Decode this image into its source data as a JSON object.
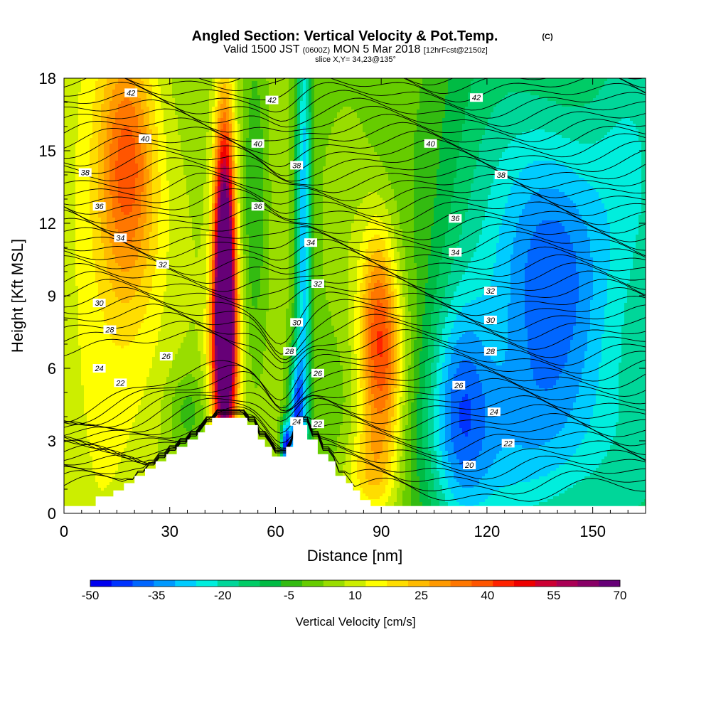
{
  "chart_data": {
    "type": "heatmap",
    "title": "Angled Section: Vertical Velocity & Pot.Temp.",
    "title_units": "(C)",
    "subtitle": {
      "prefix": "Valid 1500 JST",
      "utc": "(0600Z)",
      "main": "MON 5 Mar 2018",
      "forecast": "[12hrFcst@2150z]"
    },
    "slice_label": "slice X,Y= 34,23@135°",
    "xlabel": "Distance [nm]",
    "ylabel": "Height [Kft MSL]",
    "xlim": [
      0,
      165
    ],
    "ylim": [
      0,
      18
    ],
    "x_ticks": [
      0,
      30,
      60,
      90,
      120,
      150
    ],
    "y_ticks": [
      0,
      3,
      6,
      9,
      12,
      15,
      18
    ],
    "grid": false,
    "colorbar": {
      "label": "Vertical Velocity [cm/s]",
      "ticks": [
        "-50",
        "-35",
        "-20",
        "-5",
        "10",
        "25",
        "40",
        "55",
        "70"
      ],
      "levels": [
        -50,
        -45,
        -40,
        -35,
        -30,
        -25,
        -20,
        -15,
        -10,
        -5,
        0,
        5,
        10,
        15,
        20,
        25,
        30,
        35,
        40,
        45,
        50,
        55,
        60,
        65,
        70
      ],
      "colors": [
        "#0000ee",
        "#0033ff",
        "#0066ff",
        "#0099ff",
        "#00ccff",
        "#00eedd",
        "#00d699",
        "#00cc66",
        "#00bb44",
        "#33bb11",
        "#66cc00",
        "#99dd00",
        "#ccee00",
        "#ffff00",
        "#ffdd00",
        "#ffbb00",
        "#ff9900",
        "#ff7700",
        "#ff5500",
        "#ff2200",
        "#ee0000",
        "#cc0033",
        "#aa0055",
        "#880066",
        "#660077"
      ]
    },
    "velocity_features": [
      {
        "x": 45.5,
        "y": 9.5,
        "sx": 2.0,
        "sy": 4.5,
        "amp": 92
      },
      {
        "x": 45.5,
        "y": 6.5,
        "sx": 3.0,
        "sy": 2.5,
        "amp": 30
      },
      {
        "x": 18,
        "y": 14.5,
        "sx": 5.5,
        "sy": 3.5,
        "amp": 27
      },
      {
        "x": 25,
        "y": 10,
        "sx": 12,
        "sy": 6,
        "amp": 8
      },
      {
        "x": 90,
        "y": 6,
        "sx": 4.5,
        "sy": 3.0,
        "amp": 38
      },
      {
        "x": 89,
        "y": 9.5,
        "sx": 3.5,
        "sy": 2.5,
        "amp": 14
      },
      {
        "x": 80,
        "y": 12,
        "sx": 6,
        "sy": 5,
        "amp": 9
      },
      {
        "x": 86,
        "y": 1.5,
        "sx": 6,
        "sy": 1.5,
        "amp": 18
      },
      {
        "x": 68,
        "y": 12,
        "sx": 1.5,
        "sy": 7,
        "amp": -34
      },
      {
        "x": 66,
        "y": 4,
        "sx": 1.5,
        "sy": 1.8,
        "amp": -40
      },
      {
        "x": 63,
        "y": 2.8,
        "sx": 1.0,
        "sy": 0.7,
        "amp": -50
      },
      {
        "x": 54,
        "y": 13,
        "sx": 2.5,
        "sy": 5,
        "amp": -14
      },
      {
        "x": 140,
        "y": 9.5,
        "sx": 11,
        "sy": 4.5,
        "amp": -30
      },
      {
        "x": 112,
        "y": 4.5,
        "sx": 6,
        "sy": 3.5,
        "amp": -24
      },
      {
        "x": 130,
        "y": 2.5,
        "sx": 22,
        "sy": 3,
        "amp": -16
      },
      {
        "x": 125,
        "y": 12,
        "sx": 18,
        "sy": 6,
        "amp": -10
      },
      {
        "x": 160,
        "y": 15,
        "sx": 8,
        "sy": 4,
        "amp": -8
      },
      {
        "x": 35,
        "y": 4.2,
        "sx": 4,
        "sy": 1.2,
        "amp": -10
      }
    ],
    "contour_labels": [
      {
        "t": "42",
        "x": 19,
        "y": 17.4
      },
      {
        "t": "40",
        "x": 23,
        "y": 15.5
      },
      {
        "t": "38",
        "x": 6,
        "y": 14.1
      },
      {
        "t": "36",
        "x": 10,
        "y": 12.7
      },
      {
        "t": "34",
        "x": 16,
        "y": 11.4
      },
      {
        "t": "32",
        "x": 28,
        "y": 10.3
      },
      {
        "t": "30",
        "x": 10,
        "y": 8.7
      },
      {
        "t": "28",
        "x": 13,
        "y": 7.6
      },
      {
        "t": "26",
        "x": 29,
        "y": 6.5
      },
      {
        "t": "24",
        "x": 10,
        "y": 6.0
      },
      {
        "t": "22",
        "x": 16,
        "y": 5.4
      },
      {
        "t": "42",
        "x": 59,
        "y": 17.1
      },
      {
        "t": "40",
        "x": 55,
        "y": 15.3
      },
      {
        "t": "38",
        "x": 66,
        "y": 14.4
      },
      {
        "t": "36",
        "x": 55,
        "y": 12.7
      },
      {
        "t": "34",
        "x": 70,
        "y": 11.2
      },
      {
        "t": "32",
        "x": 72,
        "y": 9.5
      },
      {
        "t": "30",
        "x": 66,
        "y": 7.9
      },
      {
        "t": "28",
        "x": 64,
        "y": 6.7
      },
      {
        "t": "26",
        "x": 72,
        "y": 5.8
      },
      {
        "t": "24",
        "x": 66,
        "y": 3.8
      },
      {
        "t": "22",
        "x": 72,
        "y": 3.7
      },
      {
        "t": "42",
        "x": 117,
        "y": 17.2
      },
      {
        "t": "40",
        "x": 104,
        "y": 15.3
      },
      {
        "t": "38",
        "x": 124,
        "y": 14.0
      },
      {
        "t": "36",
        "x": 111,
        "y": 12.2
      },
      {
        "t": "34",
        "x": 111,
        "y": 10.8
      },
      {
        "t": "32",
        "x": 121,
        "y": 9.2
      },
      {
        "t": "30",
        "x": 121,
        "y": 8.0
      },
      {
        "t": "28",
        "x": 121,
        "y": 6.7
      },
      {
        "t": "26",
        "x": 112,
        "y": 5.3
      },
      {
        "t": "24",
        "x": 122,
        "y": 4.2
      },
      {
        "t": "22",
        "x": 126,
        "y": 2.9
      },
      {
        "t": "20",
        "x": 115,
        "y": 2.0
      }
    ]
  }
}
